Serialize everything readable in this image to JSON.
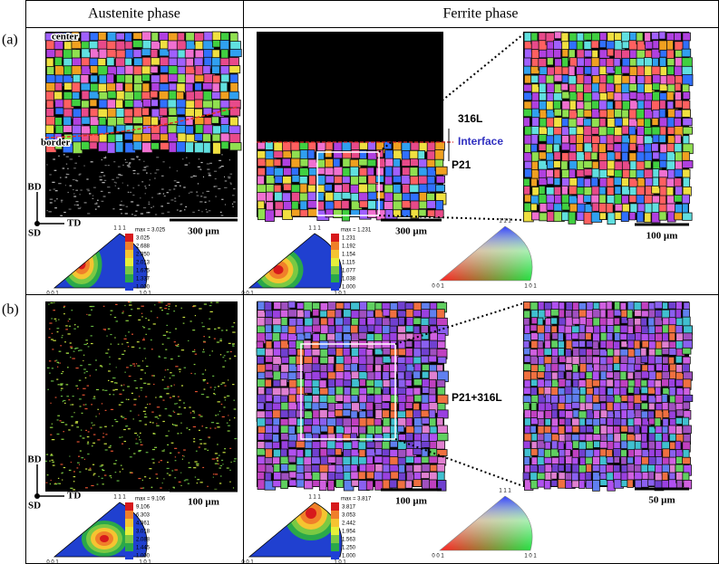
{
  "header": {
    "austenite": "Austenite phase",
    "ferrite": "Ferrite phase"
  },
  "panel_a": {
    "label": "(a)",
    "center": "center",
    "border": "border",
    "axes": {
      "bd": "BD",
      "td": "TD",
      "sd": "SD"
    },
    "scale_austenite": "300 µm",
    "scale_ferrite": "300 µm",
    "scale_zoom": "100 µm",
    "layer_top": "316L",
    "interface": "Interface",
    "layer_bottom": "P21",
    "pole_austenite": {
      "top": "1 1 1",
      "left": "0 0 1",
      "right": "1 0 1"
    },
    "legend_austenite": {
      "max": "max = 3.025",
      "levels": [
        "3.025",
        "2.688",
        "2.350",
        "2.013",
        "1.675",
        "1.337",
        "1.000"
      ]
    },
    "pole_ferrite": {
      "top": "1 1 1",
      "left": "0 0 1",
      "right": "1 0 1"
    },
    "legend_ferrite": {
      "max": "max = 1.231",
      "levels": [
        "1.231",
        "1.192",
        "1.154",
        "1.115",
        "1.077",
        "1.038",
        "1.000"
      ]
    },
    "ipf_key": {
      "top": "1 1 1",
      "left": "0 0 1",
      "right": "1 0 1"
    }
  },
  "panel_b": {
    "label": "(b)",
    "axes": {
      "bd": "BD",
      "td": "TD",
      "sd": "SD"
    },
    "scale_austenite": "100 µm",
    "scale_ferrite": "100 µm",
    "scale_zoom": "50 µm",
    "region": "P21+316L",
    "pole_austenite": {
      "top": "1 1 1",
      "left": "0 0 1",
      "right": "1 0 1"
    },
    "legend_austenite": {
      "max": "max = 9.106",
      "levels": [
        "9.106",
        "6.303",
        "4.361",
        "3.018",
        "2.088",
        "1.445",
        "1.000"
      ]
    },
    "pole_ferrite": {
      "top": "1 1 1",
      "left": "0 0 1",
      "right": "1 0 1"
    },
    "legend_ferrite": {
      "max": "max = 3.817",
      "levels": [
        "3.817",
        "3.053",
        "2.442",
        "1.954",
        "1.563",
        "1.250",
        "1.000"
      ]
    },
    "ipf_key": {
      "top": "1 1 1",
      "left": "0 0 1",
      "right": "1 0 1"
    }
  }
}
